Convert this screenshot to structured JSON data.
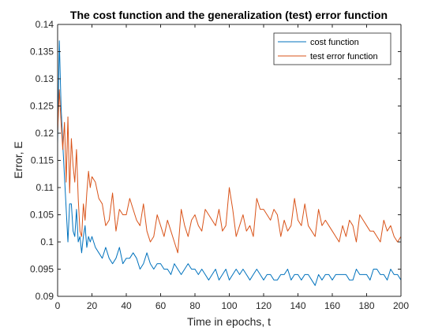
{
  "chart_data": {
    "type": "line",
    "title": "The cost function and the generalization (test) error function",
    "xlabel": "Time in epochs, t",
    "ylabel": "Error, E",
    "xlim": [
      0,
      200
    ],
    "ylim": [
      0.09,
      0.14
    ],
    "xticks": [
      0,
      20,
      40,
      60,
      80,
      100,
      120,
      140,
      160,
      180,
      200
    ],
    "yticks": [
      0.09,
      0.095,
      0.1,
      0.105,
      0.11,
      0.115,
      0.12,
      0.125,
      0.13,
      0.135,
      0.14
    ],
    "ytick_labels": [
      "0.09",
      "0.095",
      "0.1",
      "0.105",
      "0.11",
      "0.115",
      "0.12",
      "0.125",
      "0.13",
      "0.135",
      "0.14"
    ],
    "grid": false,
    "legend_position": "top-right",
    "colors": {
      "cost": "#0072BD",
      "test": "#D95319",
      "axis": "#262626"
    },
    "series": [
      {
        "name": "cost function",
        "color": "#0072BD",
        "x": [
          0,
          1,
          2,
          3,
          4,
          5,
          6,
          7,
          8,
          9,
          10,
          11,
          12,
          13,
          14,
          15,
          16,
          17,
          18,
          19,
          20,
          22,
          24,
          26,
          28,
          30,
          32,
          34,
          36,
          38,
          40,
          42,
          44,
          46,
          48,
          50,
          52,
          54,
          56,
          58,
          60,
          62,
          64,
          66,
          68,
          70,
          72,
          74,
          76,
          78,
          80,
          82,
          84,
          86,
          88,
          90,
          92,
          94,
          96,
          98,
          100,
          102,
          104,
          106,
          108,
          110,
          112,
          114,
          116,
          118,
          120,
          122,
          124,
          126,
          128,
          130,
          132,
          134,
          136,
          138,
          140,
          142,
          144,
          146,
          148,
          150,
          152,
          154,
          156,
          158,
          160,
          162,
          164,
          166,
          168,
          170,
          172,
          174,
          176,
          178,
          180,
          182,
          184,
          186,
          188,
          190,
          192,
          194,
          196,
          198,
          200
        ],
        "values": [
          0.118,
          0.137,
          0.125,
          0.118,
          0.112,
          0.106,
          0.1,
          0.107,
          0.107,
          0.102,
          0.101,
          0.106,
          0.1,
          0.101,
          0.098,
          0.101,
          0.103,
          0.099,
          0.101,
          0.1,
          0.101,
          0.099,
          0.098,
          0.097,
          0.099,
          0.097,
          0.096,
          0.097,
          0.099,
          0.096,
          0.097,
          0.097,
          0.098,
          0.097,
          0.095,
          0.096,
          0.098,
          0.096,
          0.095,
          0.096,
          0.096,
          0.095,
          0.095,
          0.094,
          0.096,
          0.095,
          0.094,
          0.095,
          0.096,
          0.095,
          0.095,
          0.094,
          0.095,
          0.094,
          0.093,
          0.094,
          0.095,
          0.093,
          0.094,
          0.095,
          0.093,
          0.094,
          0.095,
          0.094,
          0.095,
          0.094,
          0.093,
          0.094,
          0.095,
          0.094,
          0.093,
          0.094,
          0.094,
          0.093,
          0.093,
          0.094,
          0.094,
          0.095,
          0.093,
          0.094,
          0.094,
          0.093,
          0.094,
          0.094,
          0.093,
          0.092,
          0.094,
          0.093,
          0.094,
          0.094,
          0.093,
          0.094,
          0.094,
          0.094,
          0.094,
          0.093,
          0.093,
          0.095,
          0.094,
          0.094,
          0.094,
          0.093,
          0.095,
          0.095,
          0.094,
          0.094,
          0.093,
          0.095,
          0.094,
          0.094,
          0.093
        ]
      },
      {
        "name": "test error function",
        "color": "#D95319",
        "x": [
          0,
          1,
          2,
          3,
          4,
          5,
          6,
          7,
          8,
          9,
          10,
          11,
          12,
          13,
          14,
          15,
          16,
          17,
          18,
          19,
          20,
          22,
          24,
          26,
          28,
          30,
          32,
          34,
          36,
          38,
          40,
          42,
          44,
          46,
          48,
          50,
          52,
          54,
          56,
          58,
          60,
          62,
          64,
          66,
          68,
          70,
          72,
          74,
          76,
          78,
          80,
          82,
          84,
          86,
          88,
          90,
          92,
          94,
          96,
          98,
          100,
          102,
          104,
          106,
          108,
          110,
          112,
          114,
          116,
          118,
          120,
          122,
          124,
          126,
          128,
          130,
          132,
          134,
          136,
          138,
          140,
          142,
          144,
          146,
          148,
          150,
          152,
          154,
          156,
          158,
          160,
          162,
          164,
          166,
          168,
          170,
          172,
          174,
          176,
          178,
          180,
          182,
          184,
          186,
          188,
          190,
          192,
          194,
          196,
          198,
          200
        ],
        "values": [
          0.12,
          0.128,
          0.122,
          0.117,
          0.122,
          0.111,
          0.123,
          0.109,
          0.119,
          0.114,
          0.111,
          0.117,
          0.108,
          0.102,
          0.101,
          0.107,
          0.104,
          0.109,
          0.113,
          0.11,
          0.112,
          0.111,
          0.108,
          0.107,
          0.103,
          0.104,
          0.109,
          0.102,
          0.106,
          0.105,
          0.105,
          0.108,
          0.106,
          0.104,
          0.103,
          0.107,
          0.102,
          0.1,
          0.101,
          0.105,
          0.103,
          0.101,
          0.104,
          0.102,
          0.1,
          0.098,
          0.106,
          0.103,
          0.101,
          0.104,
          0.105,
          0.103,
          0.102,
          0.106,
          0.105,
          0.104,
          0.103,
          0.106,
          0.102,
          0.103,
          0.11,
          0.106,
          0.101,
          0.103,
          0.105,
          0.102,
          0.103,
          0.101,
          0.108,
          0.106,
          0.106,
          0.105,
          0.104,
          0.106,
          0.105,
          0.101,
          0.104,
          0.102,
          0.103,
          0.108,
          0.104,
          0.103,
          0.107,
          0.103,
          0.102,
          0.101,
          0.106,
          0.103,
          0.104,
          0.103,
          0.102,
          0.101,
          0.1,
          0.103,
          0.101,
          0.104,
          0.103,
          0.1,
          0.105,
          0.104,
          0.103,
          0.102,
          0.102,
          0.101,
          0.1,
          0.104,
          0.102,
          0.103,
          0.101,
          0.1,
          0.101
        ]
      }
    ]
  }
}
